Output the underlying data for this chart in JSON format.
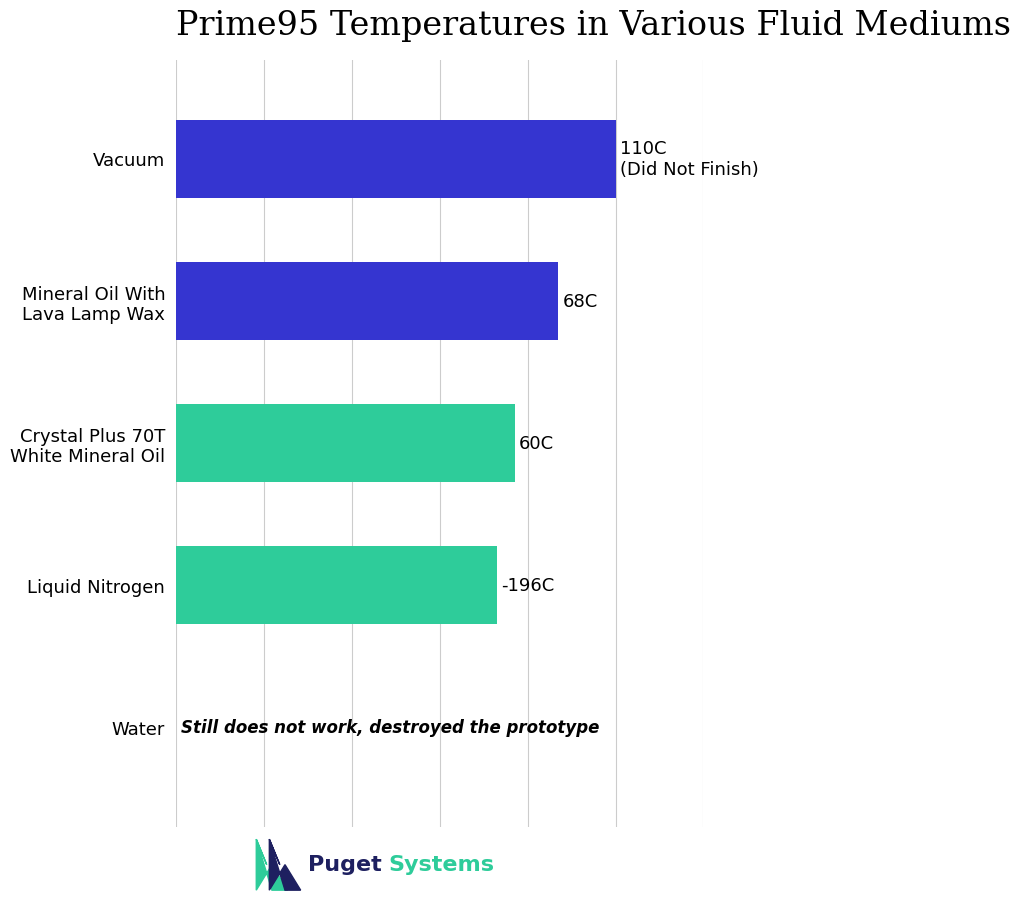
{
  "title": "Prime95 Temperatures in Various Fluid Mediums",
  "categories": [
    "Vacuum",
    "Mineral Oil With\nLava Lamp Wax",
    "Crystal Plus 70T\nWhite Mineral Oil",
    "Liquid Nitrogen",
    "Water"
  ],
  "bar_widths": [
    100,
    87,
    77,
    73,
    0
  ],
  "bar_colors": [
    "#3535D0",
    "#3535D0",
    "#2ECC9A",
    "#2ECC9A",
    "none"
  ],
  "value_labels": [
    "110C\n(Did Not Finish)",
    "68C",
    "60C",
    "-196C",
    null
  ],
  "water_annotation": "Still does not work, destroyed the prototype",
  "xlim": [
    0,
    120
  ],
  "background_color": "#FFFFFF",
  "title_fontsize": 24,
  "tick_fontsize": 13,
  "annotation_fontsize": 13,
  "grid_color": "#CCCCCC",
  "puget_text_puget_color": "#1E2060",
  "puget_text_systems_color": "#2ECC9A",
  "bar_height": 0.55
}
